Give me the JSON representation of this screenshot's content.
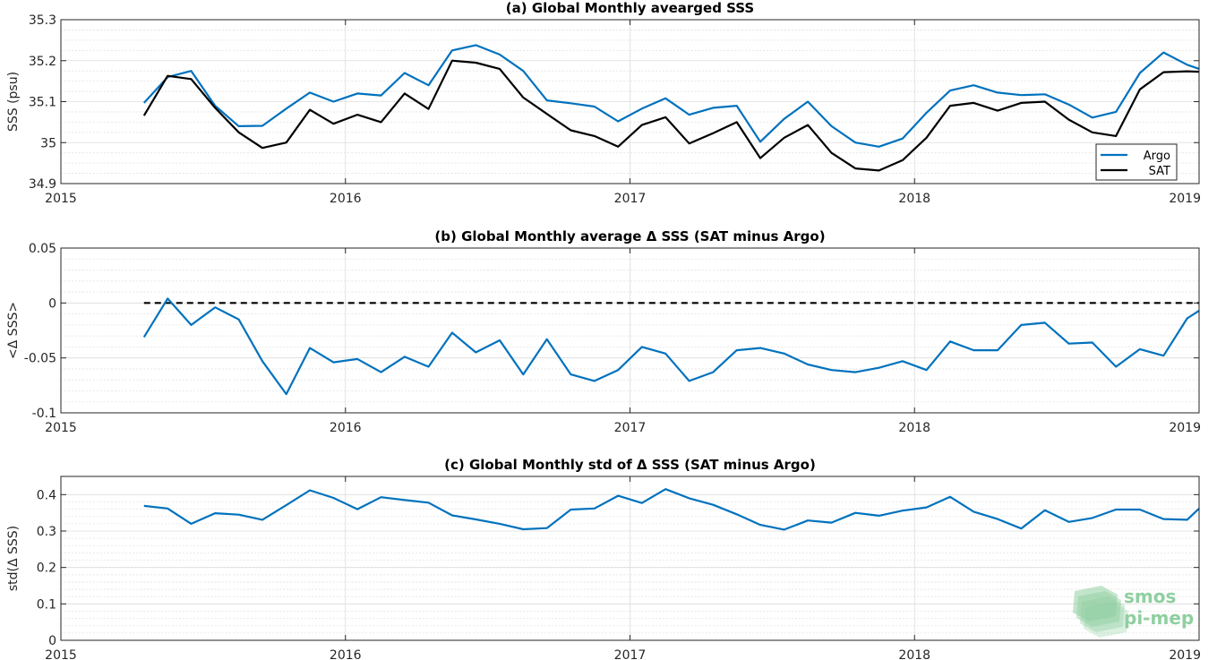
{
  "chart_data": [
    {
      "type": "line",
      "title": "(a) Global Monthly avearged SSS",
      "ylabel": "SSS (psu)",
      "xlim": [
        2015,
        2019
      ],
      "ylim": [
        34.9,
        35.3
      ],
      "xticks": [
        2015,
        2016,
        2017,
        2018,
        2019
      ],
      "xtick_labels": [
        "2015",
        "2016",
        "2017",
        "2018",
        "2019"
      ],
      "yticks": [
        34.9,
        35,
        35.1,
        35.2,
        35.3
      ],
      "ytick_labels": [
        "34.9",
        "35",
        "35.1",
        "35.2",
        "35.3"
      ],
      "grid": true,
      "legend": "bottom-right",
      "x": [
        2015.292,
        2015.375,
        2015.458,
        2015.542,
        2015.625,
        2015.708,
        2015.792,
        2015.875,
        2015.958,
        2016.042,
        2016.125,
        2016.208,
        2016.292,
        2016.375,
        2016.458,
        2016.542,
        2016.625,
        2016.708,
        2016.792,
        2016.875,
        2016.958,
        2017.042,
        2017.125,
        2017.208,
        2017.292,
        2017.375,
        2017.458,
        2017.542,
        2017.625,
        2017.708,
        2017.792,
        2017.875,
        2017.958,
        2018.042,
        2018.125,
        2018.208,
        2018.292,
        2018.375,
        2018.458,
        2018.542,
        2018.625,
        2018.708,
        2018.792,
        2018.875,
        2018.958,
        2019.0
      ],
      "series": [
        {
          "name": "Argo",
          "color": "#0072BD",
          "values": [
            35.097,
            35.16,
            35.175,
            35.09,
            35.04,
            35.041,
            35.083,
            35.122,
            35.1,
            35.12,
            35.115,
            35.17,
            35.14,
            35.225,
            35.238,
            35.215,
            35.175,
            35.103,
            35.096,
            35.088,
            35.052,
            35.083,
            35.108,
            35.068,
            35.085,
            35.09,
            35.002,
            35.058,
            35.1,
            35.04,
            35.0,
            34.99,
            35.01,
            35.073,
            35.127,
            35.14,
            35.122,
            35.116,
            35.118,
            35.093,
            35.061,
            35.075,
            35.17,
            35.22,
            35.19,
            35.18
          ]
        },
        {
          "name": "SAT",
          "color": "#000000",
          "values": [
            35.066,
            35.163,
            35.155,
            35.085,
            35.025,
            34.987,
            35.0,
            35.08,
            35.046,
            35.068,
            35.05,
            35.12,
            35.082,
            35.2,
            35.195,
            35.18,
            35.11,
            35.07,
            35.03,
            35.016,
            34.99,
            35.043,
            35.062,
            34.998,
            35.023,
            35.05,
            34.962,
            35.012,
            35.043,
            34.975,
            34.937,
            34.932,
            34.957,
            35.012,
            35.09,
            35.097,
            35.078,
            35.097,
            35.1,
            35.056,
            35.025,
            35.016,
            35.13,
            35.172,
            35.174,
            35.173
          ]
        }
      ]
    },
    {
      "type": "line",
      "title": "(b) Global Monthly average Δ SSS (SAT minus Argo)",
      "ylabel": "<Δ SSS>",
      "xlim": [
        2015,
        2019
      ],
      "ylim": [
        -0.1,
        0.05
      ],
      "xticks": [
        2015,
        2016,
        2017,
        2018,
        2019
      ],
      "xtick_labels": [
        "2015",
        "2016",
        "2017",
        "2018",
        "2019"
      ],
      "yticks": [
        -0.1,
        -0.05,
        0,
        0.05
      ],
      "ytick_labels": [
        "-0.1",
        "-0.05",
        "0",
        "0.05"
      ],
      "grid": true,
      "reference_line": 0,
      "x": [
        2015.292,
        2015.375,
        2015.458,
        2015.542,
        2015.625,
        2015.708,
        2015.792,
        2015.875,
        2015.958,
        2016.042,
        2016.125,
        2016.208,
        2016.292,
        2016.375,
        2016.458,
        2016.542,
        2016.625,
        2016.708,
        2016.792,
        2016.875,
        2016.958,
        2017.042,
        2017.125,
        2017.208,
        2017.292,
        2017.375,
        2017.458,
        2017.542,
        2017.625,
        2017.708,
        2017.792,
        2017.875,
        2017.958,
        2018.042,
        2018.125,
        2018.208,
        2018.292,
        2018.375,
        2018.458,
        2018.542,
        2018.625,
        2018.708,
        2018.792,
        2018.875,
        2018.958,
        2019.0
      ],
      "series": [
        {
          "color": "#0072BD",
          "values": [
            -0.031,
            0.004,
            -0.02,
            -0.004,
            -0.015,
            -0.053,
            -0.083,
            -0.041,
            -0.054,
            -0.051,
            -0.063,
            -0.049,
            -0.058,
            -0.027,
            -0.045,
            -0.034,
            -0.065,
            -0.033,
            -0.065,
            -0.071,
            -0.061,
            -0.04,
            -0.046,
            -0.071,
            -0.063,
            -0.043,
            -0.041,
            -0.046,
            -0.056,
            -0.061,
            -0.063,
            -0.059,
            -0.053,
            -0.061,
            -0.035,
            -0.043,
            -0.043,
            -0.02,
            -0.018,
            -0.037,
            -0.036,
            -0.058,
            -0.042,
            -0.048,
            -0.014,
            -0.007
          ]
        }
      ]
    },
    {
      "type": "line",
      "title": "(c) Global Monthly std of Δ SSS (SAT minus Argo)",
      "ylabel": "std(Δ SSS)",
      "xlim": [
        2015,
        2019
      ],
      "ylim": [
        0,
        0.45
      ],
      "xticks": [
        2015,
        2016,
        2017,
        2018,
        2019
      ],
      "xtick_labels": [
        "2015",
        "2016",
        "2017",
        "2018",
        "2019"
      ],
      "yticks": [
        0,
        0.1,
        0.2,
        0.3,
        0.4
      ],
      "ytick_labels": [
        "0",
        "0.1",
        "0.2",
        "0.3",
        "0.4"
      ],
      "grid": true,
      "x": [
        2015.292,
        2015.375,
        2015.458,
        2015.542,
        2015.625,
        2015.708,
        2015.792,
        2015.875,
        2015.958,
        2016.042,
        2016.125,
        2016.208,
        2016.292,
        2016.375,
        2016.458,
        2016.542,
        2016.625,
        2016.708,
        2016.792,
        2016.875,
        2016.958,
        2017.042,
        2017.125,
        2017.208,
        2017.292,
        2017.375,
        2017.458,
        2017.542,
        2017.625,
        2017.708,
        2017.792,
        2017.875,
        2017.958,
        2018.042,
        2018.125,
        2018.208,
        2018.292,
        2018.375,
        2018.458,
        2018.542,
        2018.625,
        2018.708,
        2018.792,
        2018.875,
        2018.958,
        2019.0
      ],
      "series": [
        {
          "color": "#0072BD",
          "values": [
            0.369,
            0.362,
            0.32,
            0.349,
            0.345,
            0.331,
            0.371,
            0.412,
            0.391,
            0.36,
            0.393,
            0.385,
            0.378,
            0.343,
            0.332,
            0.32,
            0.305,
            0.308,
            0.359,
            0.362,
            0.397,
            0.377,
            0.415,
            0.39,
            0.372,
            0.346,
            0.317,
            0.304,
            0.329,
            0.323,
            0.35,
            0.342,
            0.356,
            0.365,
            0.394,
            0.353,
            0.333,
            0.307,
            0.357,
            0.325,
            0.336,
            0.359,
            0.359,
            0.333,
            0.331,
            0.362
          ]
        }
      ]
    }
  ],
  "logo": {
    "line1": "smos",
    "line2": "pi-mep",
    "color": "#8fcfa0"
  }
}
